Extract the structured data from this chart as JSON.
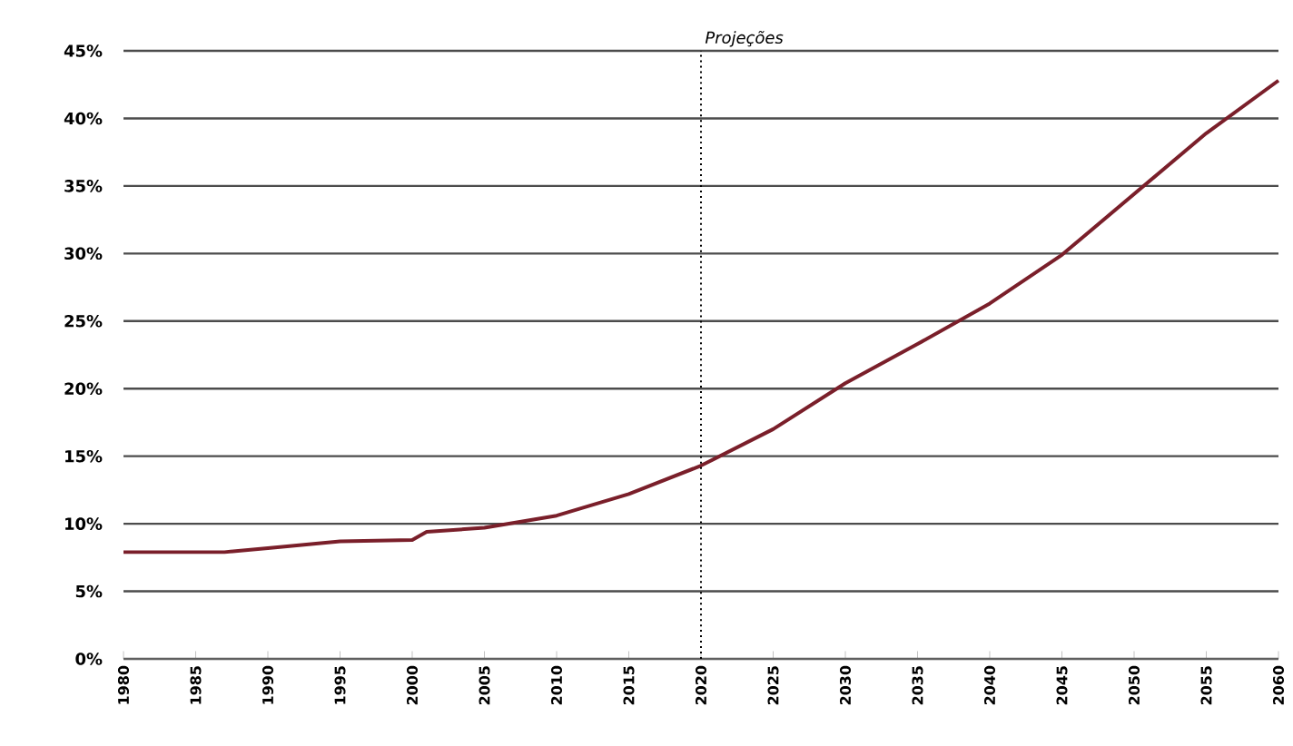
{
  "chart_data": {
    "type": "line",
    "x": [
      1980,
      1987,
      1990,
      1995,
      2000,
      2001,
      2005,
      2010,
      2015,
      2020,
      2025,
      2030,
      2035,
      2040,
      2045,
      2050,
      2055,
      2060
    ],
    "series": [
      {
        "color": "#7a1f2a",
        "values": [
          7.9,
          7.9,
          8.2,
          8.7,
          8.8,
          9.4,
          9.7,
          10.6,
          12.2,
          14.3,
          17.0,
          20.4,
          23.3,
          26.3,
          29.9,
          34.4,
          38.9,
          42.8
        ]
      }
    ],
    "xlim": [
      1980,
      2060
    ],
    "xticks": [
      1980,
      1985,
      1990,
      1995,
      2000,
      2005,
      2010,
      2015,
      2020,
      2025,
      2030,
      2035,
      2040,
      2045,
      2050,
      2055,
      2060
    ],
    "ylim": [
      0,
      45
    ],
    "yticks": [
      {
        "value": 0,
        "label": "0%"
      },
      {
        "value": 5,
        "label": "5%"
      },
      {
        "value": 10,
        "label": "10%"
      },
      {
        "value": 15,
        "label": "15%"
      },
      {
        "value": 20,
        "label": "20%"
      },
      {
        "value": 25,
        "label": "25%"
      },
      {
        "value": 30,
        "label": "30%"
      },
      {
        "value": 35,
        "label": "35%"
      },
      {
        "value": 40,
        "label": "40%"
      },
      {
        "value": 45,
        "label": "45%"
      }
    ],
    "grid": "y",
    "ref_lines": [
      {
        "axis": "x",
        "value": 2020,
        "label": "Projeções",
        "line_style": "dotted"
      }
    ]
  }
}
